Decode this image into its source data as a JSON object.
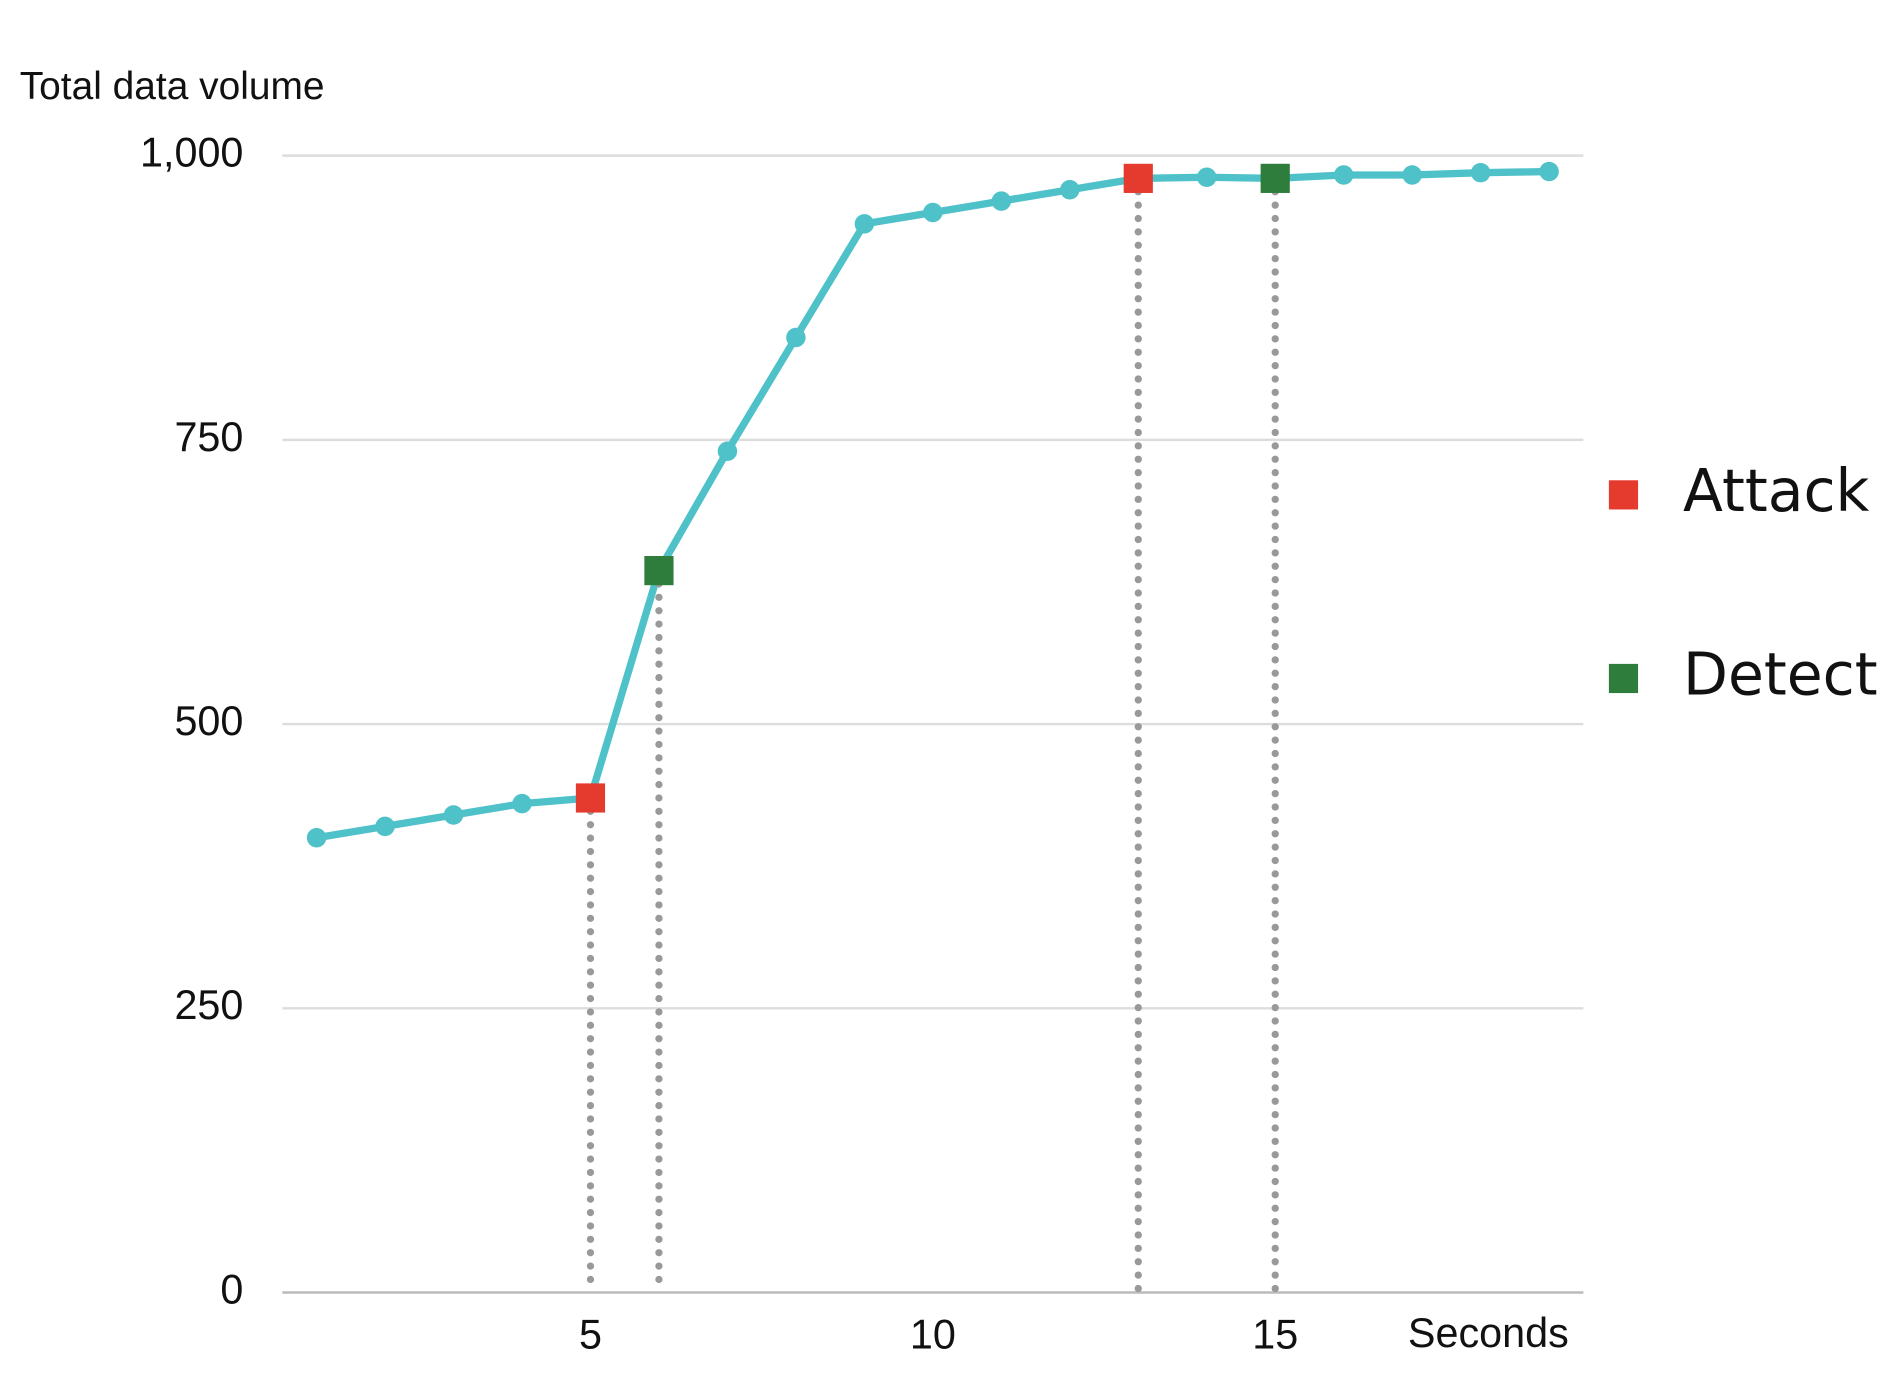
{
  "chart_data": {
    "type": "line",
    "title": "Total data volume",
    "x_label": "Seconds",
    "x": [
      1,
      2,
      3,
      4,
      5,
      6,
      7,
      8,
      9,
      10,
      11,
      12,
      13,
      14,
      15,
      16,
      17,
      18,
      19
    ],
    "series": [
      {
        "color": "#4fc1c9",
        "values": [
          400,
          410,
          420,
          430,
          435,
          635,
          740,
          840,
          940,
          950,
          960,
          970,
          980,
          981,
          980,
          983,
          983,
          985,
          986
        ]
      },
      {
        "name": "Attack",
        "color": "#e53a2e",
        "marker": "square",
        "x": [
          5,
          13
        ],
        "values": [
          435,
          980
        ]
      },
      {
        "name": "Detect",
        "color": "#2e7d3c",
        "marker": "square",
        "x": [
          6,
          15
        ],
        "values": [
          635,
          980
        ]
      }
    ],
    "xlim": [
      0.5,
      19.5
    ],
    "xticks": [
      5,
      10,
      15
    ],
    "ylim": [
      0,
      1000
    ],
    "yticks": [
      0,
      250,
      500,
      750,
      {
        "value": 1000,
        "label": "1,000"
      }
    ],
    "grid": true,
    "legend": "right"
  }
}
